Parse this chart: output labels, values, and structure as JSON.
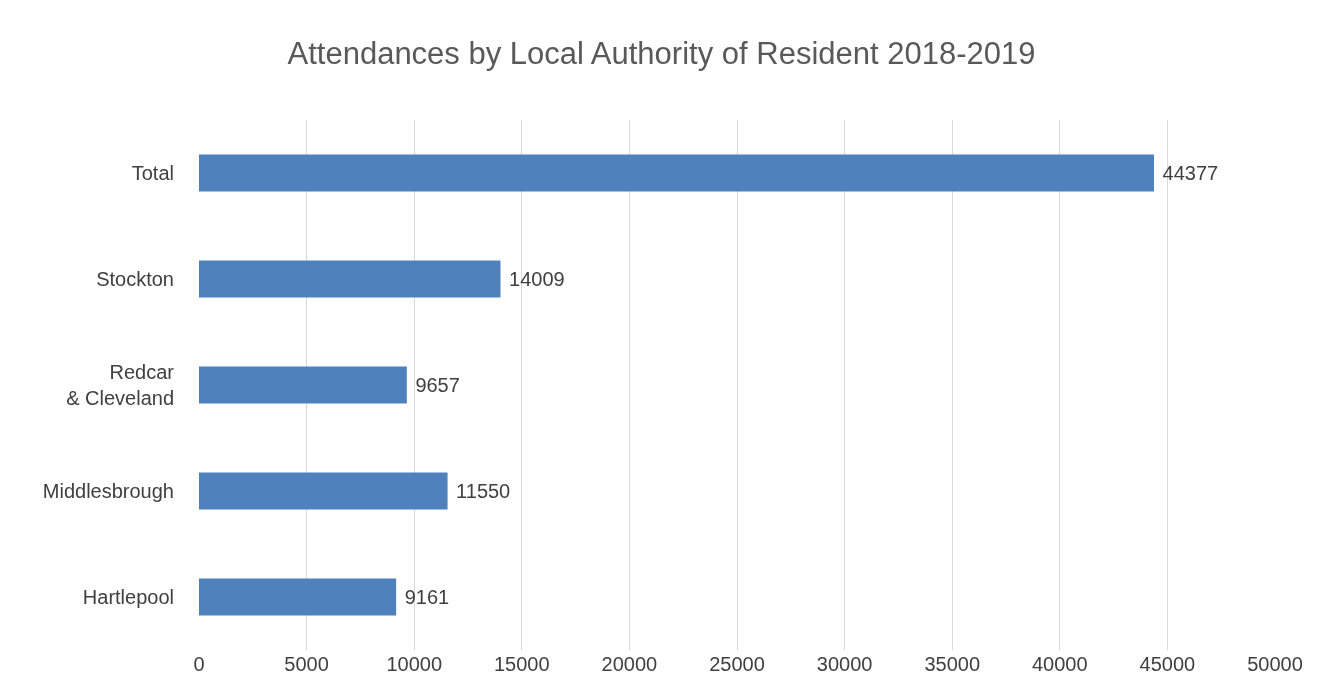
{
  "chart_data": {
    "type": "bar",
    "orientation": "horizontal",
    "title": "Attendances by Local Authority of Resident 2018-2019",
    "categories": [
      "Total",
      "Stockton",
      "Redcar\n& Cleveland",
      "Middlesbrough",
      "Hartlepool"
    ],
    "values": [
      44377,
      14009,
      9657,
      11550,
      9161
    ],
    "color": "#4f81bd",
    "xlim": [
      0,
      50000
    ],
    "xticks": [
      0,
      5000,
      10000,
      15000,
      20000,
      25000,
      30000,
      35000,
      40000,
      45000,
      50000
    ],
    "grid": "x",
    "data_labels": true
  }
}
